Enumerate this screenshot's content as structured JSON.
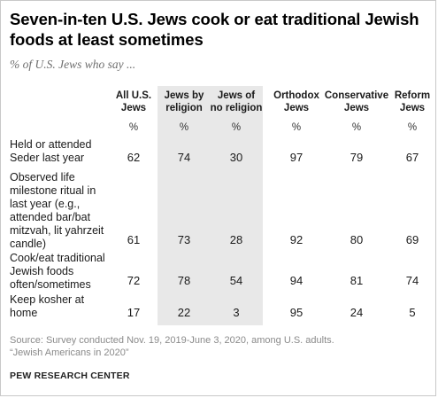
{
  "title": "Seven-in-ten U.S. Jews cook or eat traditional Jewish foods at least sometimes",
  "subtitle": "% of U.S. Jews who say ...",
  "chart_data": {
    "type": "table",
    "columns": [
      {
        "label": "All U.S. Jews",
        "unit": "%"
      },
      {
        "label": "Jews by religion",
        "unit": "%"
      },
      {
        "label": "Jews of no religion",
        "unit": "%"
      },
      {
        "label": "Orthodox Jews",
        "unit": "%"
      },
      {
        "label": "Conservative Jews",
        "unit": "%"
      },
      {
        "label": "Reform Jews",
        "unit": "%"
      }
    ],
    "rows": [
      {
        "label": "Held or attended Seder last year",
        "values": [
          62,
          74,
          30,
          97,
          79,
          67
        ]
      },
      {
        "label": "Observed life milestone ritual in last year (e.g., attended bar/bat mitzvah, lit yahrzeit candle)",
        "values": [
          61,
          73,
          28,
          92,
          80,
          69
        ]
      },
      {
        "label": "Cook/eat traditional Jewish foods often/sometimes",
        "values": [
          72,
          78,
          54,
          94,
          81,
          74
        ]
      },
      {
        "label": "Keep kosher at home",
        "values": [
          17,
          22,
          3,
          95,
          24,
          5
        ]
      }
    ],
    "highlighted_columns": [
      1,
      2
    ],
    "highlight_color": "#e8e8e8"
  },
  "source_lines": [
    "Source: Survey conducted Nov. 19, 2019-June 3, 2020, among U.S. adults.",
    "“Jewish Americans in 2020”"
  ],
  "brand": "PEW RESEARCH CENTER"
}
